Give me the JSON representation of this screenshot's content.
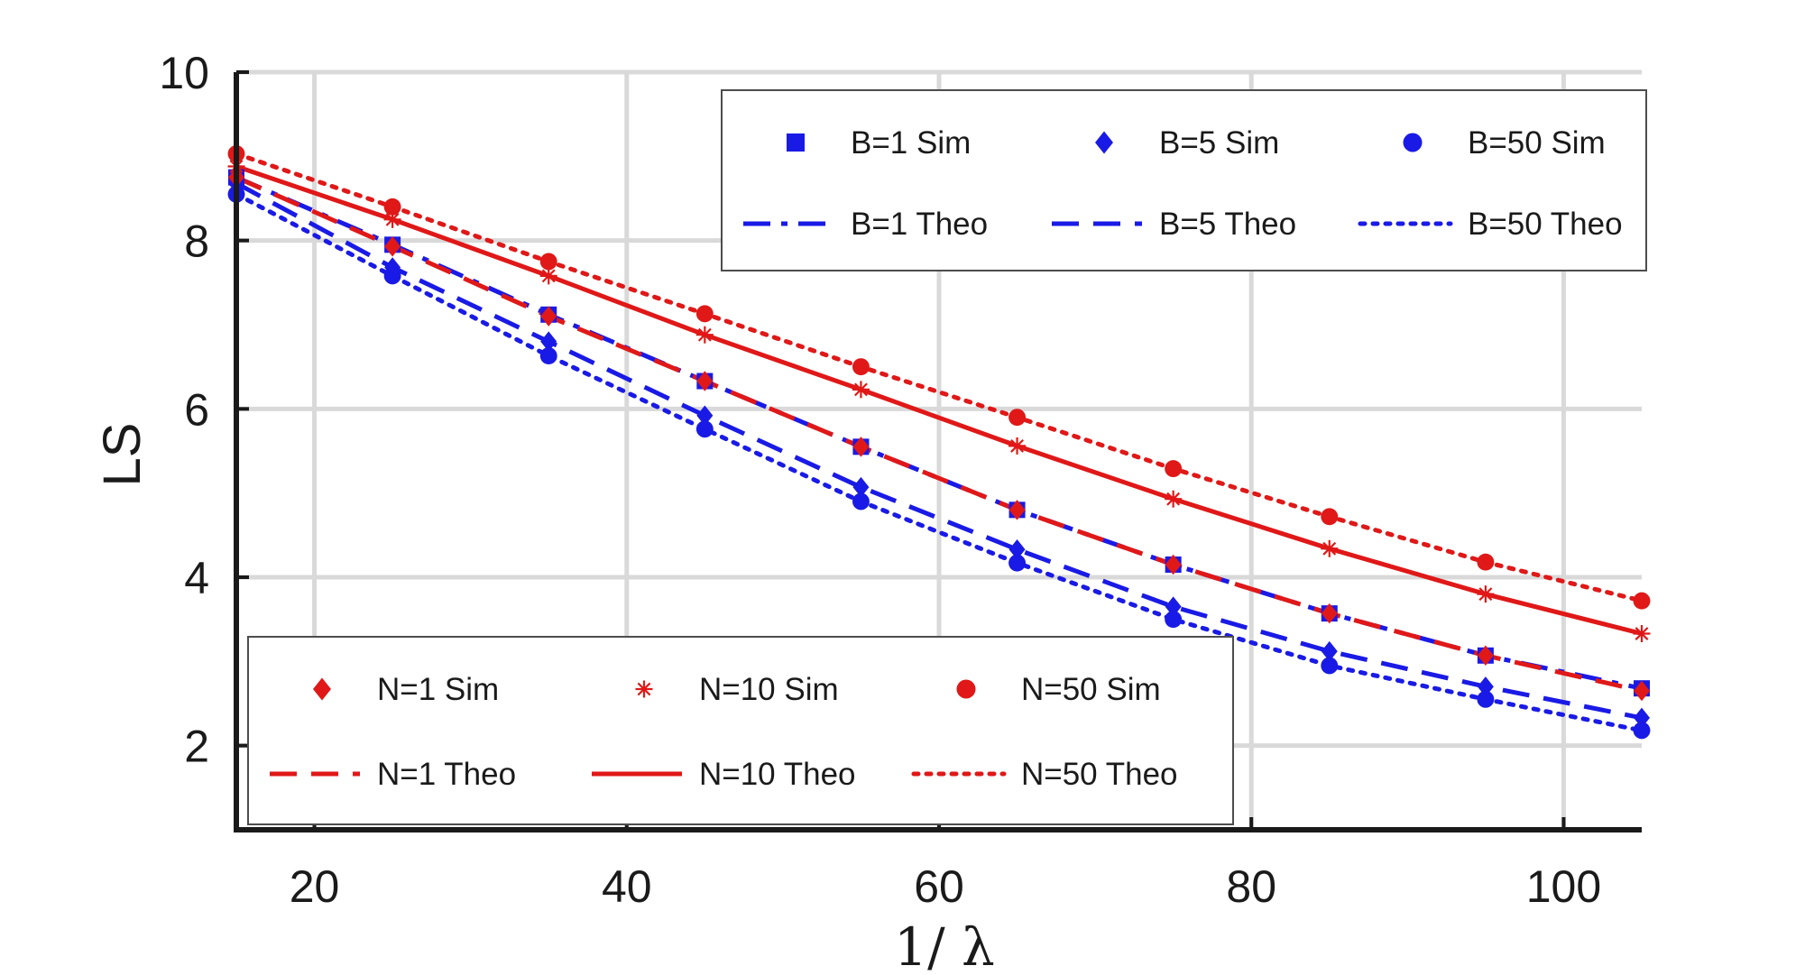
{
  "chart_data": {
    "type": "line",
    "title": "",
    "xlabel": "1/ λ",
    "ylabel": "LS",
    "xlim": [
      15,
      105
    ],
    "ylim": [
      1,
      10
    ],
    "xticks": [
      20,
      40,
      60,
      80,
      100
    ],
    "yticks": [
      2,
      4,
      6,
      8,
      10
    ],
    "grid": true,
    "x": [
      15,
      25,
      35,
      45,
      55,
      65,
      75,
      85,
      95,
      105
    ],
    "colors": {
      "blue": "#1a1ae6",
      "red": "#e01818",
      "grid": "#d9d9d9",
      "axis": "#1a1a1a"
    },
    "series": [
      {
        "name": "B=1 Sim",
        "color": "#1a1ae6",
        "marker": "square",
        "line": "none",
        "values": [
          8.75,
          7.95,
          7.12,
          6.33,
          5.55,
          4.8,
          4.15,
          3.57,
          3.07,
          2.68
        ]
      },
      {
        "name": "B=5 Sim",
        "color": "#1a1ae6",
        "marker": "diamond",
        "line": "none",
        "values": [
          8.68,
          7.68,
          6.8,
          5.92,
          5.07,
          4.33,
          3.65,
          3.12,
          2.7,
          2.33
        ]
      },
      {
        "name": "B=50 Sim",
        "color": "#1a1ae6",
        "marker": "circle",
        "line": "none",
        "values": [
          8.55,
          7.58,
          6.63,
          5.76,
          4.9,
          4.17,
          3.5,
          2.95,
          2.55,
          2.18
        ]
      },
      {
        "name": "B=1 Theo",
        "color": "#1a1ae6",
        "marker": "none",
        "line": "dashdot",
        "values": [
          8.75,
          7.95,
          7.12,
          6.33,
          5.55,
          4.8,
          4.15,
          3.57,
          3.07,
          2.68
        ]
      },
      {
        "name": "B=5 Theo",
        "color": "#1a1ae6",
        "marker": "none",
        "line": "dash",
        "values": [
          8.68,
          7.68,
          6.8,
          5.92,
          5.07,
          4.33,
          3.65,
          3.12,
          2.7,
          2.33
        ]
      },
      {
        "name": "B=50 Theo",
        "color": "#1a1ae6",
        "marker": "none",
        "line": "dot",
        "values": [
          8.55,
          7.58,
          6.63,
          5.76,
          4.9,
          4.17,
          3.5,
          2.95,
          2.55,
          2.18
        ]
      },
      {
        "name": "N=1 Sim",
        "color": "#e01818",
        "marker": "diamond",
        "line": "none",
        "values": [
          8.75,
          7.93,
          7.1,
          6.33,
          5.55,
          4.8,
          4.15,
          3.57,
          3.07,
          2.65
        ]
      },
      {
        "name": "N=10 Sim",
        "color": "#e01818",
        "marker": "asterisk",
        "line": "none",
        "values": [
          8.88,
          8.25,
          7.58,
          6.88,
          6.23,
          5.56,
          4.93,
          4.34,
          3.8,
          3.33
        ]
      },
      {
        "name": "N=50 Sim",
        "color": "#e01818",
        "marker": "circle",
        "line": "none",
        "values": [
          9.03,
          8.4,
          7.75,
          7.13,
          6.5,
          5.9,
          5.29,
          4.72,
          4.18,
          3.72
        ]
      },
      {
        "name": "N=1 Theo",
        "color": "#e01818",
        "marker": "none",
        "line": "dash",
        "values": [
          8.75,
          7.93,
          7.1,
          6.33,
          5.55,
          4.8,
          4.15,
          3.57,
          3.07,
          2.65
        ]
      },
      {
        "name": "N=10 Theo",
        "color": "#e01818",
        "marker": "none",
        "line": "solid",
        "values": [
          8.88,
          8.25,
          7.58,
          6.88,
          6.23,
          5.56,
          4.93,
          4.34,
          3.8,
          3.33
        ]
      },
      {
        "name": "N=50 Theo",
        "color": "#e01818",
        "marker": "none",
        "line": "dot",
        "values": [
          9.03,
          8.4,
          7.75,
          7.13,
          6.5,
          5.9,
          5.29,
          4.72,
          4.18,
          3.72
        ]
      }
    ],
    "legends": [
      {
        "placement": "top-right",
        "columns": 3,
        "entries": [
          "B=1 Sim",
          "B=5 Sim",
          "B=50 Sim",
          "B=1 Theo",
          "B=5 Theo",
          "B=50 Theo"
        ]
      },
      {
        "placement": "bottom-left",
        "columns": 3,
        "entries": [
          "N=1 Sim",
          "N=10 Sim",
          "N=50 Sim",
          "N=1 Theo",
          "N=10 Theo",
          "N=50 Theo"
        ]
      }
    ]
  }
}
